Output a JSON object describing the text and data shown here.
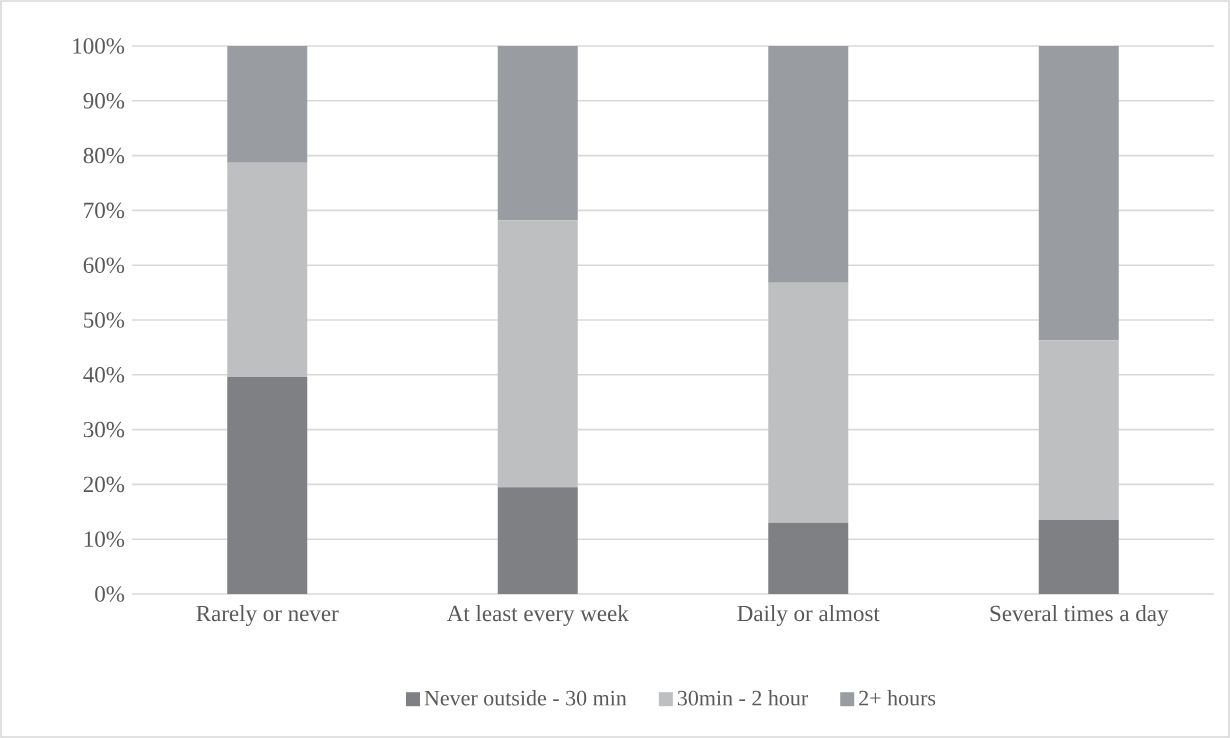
{
  "chart_data": {
    "type": "bar",
    "stacked": true,
    "categories": [
      "Rarely or never",
      "At least every week",
      "Daily or almost",
      "Several times a day"
    ],
    "series": [
      {
        "name": "Never outside - 30 min",
        "color": "#7f8083",
        "values": [
          39.6,
          19.5,
          13.0,
          13.5
        ]
      },
      {
        "name": "30min - 2 hour",
        "color": "#bebfc1",
        "values": [
          39.1,
          48.7,
          43.8,
          32.8
        ]
      },
      {
        "name": "2+ hours",
        "color": "#999ca0",
        "values": [
          21.3,
          31.8,
          43.2,
          53.7
        ]
      }
    ],
    "ylim": [
      0,
      100
    ],
    "yticks": [
      {
        "value": 0,
        "label": "0%"
      },
      {
        "value": 10,
        "label": "10%"
      },
      {
        "value": 20,
        "label": "20%"
      },
      {
        "value": 30,
        "label": "30%"
      },
      {
        "value": 40,
        "label": "40%"
      },
      {
        "value": 50,
        "label": "50%"
      },
      {
        "value": 60,
        "label": "60%"
      },
      {
        "value": 70,
        "label": "70%"
      },
      {
        "value": 80,
        "label": "80%"
      },
      {
        "value": 90,
        "label": "90%"
      },
      {
        "value": 100,
        "label": "100%"
      }
    ],
    "grid": "y",
    "legend": "bottom"
  }
}
